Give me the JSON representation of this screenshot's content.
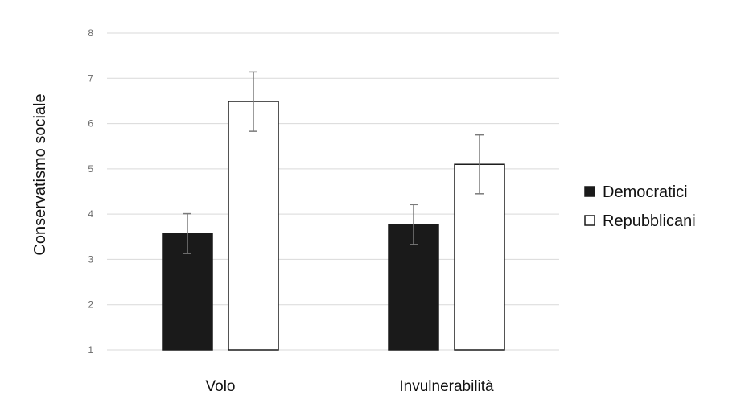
{
  "chart_data": {
    "type": "bar",
    "title": "",
    "xlabel": "",
    "ylabel": "Conservatismo sociale",
    "ylim": [
      1,
      8
    ],
    "yticks": [
      1,
      2,
      3,
      4,
      5,
      6,
      7,
      8
    ],
    "grid": true,
    "legend_position": "right",
    "categories": [
      "Volo",
      "Invulnerabilità"
    ],
    "series": [
      {
        "name": "Democratici",
        "color": "#1a1a1a",
        "values": [
          3.57,
          3.77
        ],
        "error_low": [
          3.13,
          3.33
        ],
        "error_high": [
          4.01,
          4.21
        ]
      },
      {
        "name": "Repubblicani",
        "color": "#ffffff",
        "values": [
          6.49,
          5.1
        ],
        "error_low": [
          5.83,
          4.45
        ],
        "error_high": [
          7.14,
          5.75
        ]
      }
    ]
  }
}
